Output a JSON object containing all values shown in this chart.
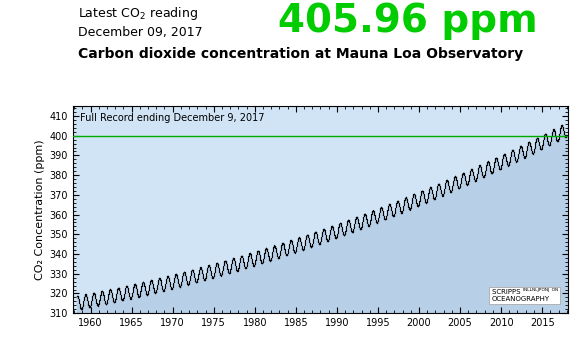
{
  "title_sub": "Carbon dioxide concentration at Mauna Loa Observatory",
  "latest_label_line2": "December 09, 2017",
  "latest_value": "405.96 ppm",
  "record_label": "Full Record ending December 9, 2017",
  "ylabel": "CO₂ Concentration (ppm)",
  "xlim": [
    1957.8,
    2018.2
  ],
  "ylim": [
    310,
    415
  ],
  "yticks": [
    310,
    320,
    330,
    340,
    350,
    360,
    370,
    380,
    390,
    400,
    410
  ],
  "xticks": [
    1960,
    1965,
    1970,
    1975,
    1980,
    1985,
    1990,
    1995,
    2000,
    2005,
    2010,
    2015
  ],
  "hline_y": 400,
  "hline_color": "#00aa00",
  "fill_color": "#b8cfe8",
  "dot_color": "#000000",
  "bg_color": "#ffffff",
  "plot_bg_color": "#d0e4f5",
  "value_fontsize": 28,
  "value_color": "#00cc00",
  "header_fontsize": 9,
  "subtitle_fontsize": 10
}
